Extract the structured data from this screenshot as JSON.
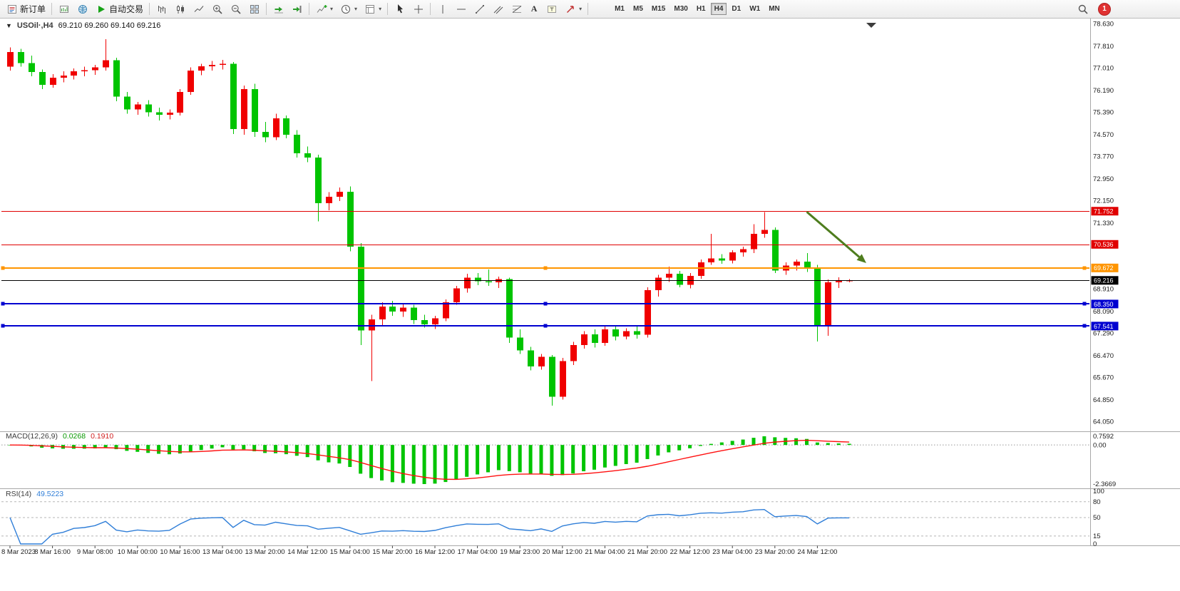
{
  "toolbar": {
    "new_order_label": "新订单",
    "auto_trading_label": "自动交易",
    "timeframes": [
      "M1",
      "M5",
      "M15",
      "M30",
      "H1",
      "H4",
      "D1",
      "W1",
      "MN"
    ],
    "active_timeframe": "H4",
    "notification_count": "1",
    "glyphs": {
      "one_click": "▼",
      "dropdown": "▾",
      "text_tool": "A"
    }
  },
  "chart_header": {
    "symbol_timeframe": "USOil·,H4",
    "ohlc": "69.210 69.260 69.140 69.216"
  },
  "indicators": {
    "macd": {
      "label": "MACD(12,26,9)",
      "value_main": "0.0268",
      "value_signal": "0.1910",
      "axis_labels": [
        "0.7592",
        "0.00",
        "-2.3669"
      ],
      "hist_color": "#00c400",
      "signal_color": "#ff1010"
    },
    "rsi": {
      "label": "RSI(14)",
      "value": "49.5223",
      "axis_labels": [
        "100",
        "80",
        "50",
        "15",
        "0"
      ],
      "levels": [
        80,
        50,
        15
      ],
      "line_color": "#2f7ed8"
    }
  },
  "chart_data": {
    "type": "candlestick",
    "symbol": "USOil",
    "timeframe": "H4",
    "colors": {
      "bull": "#f00000",
      "bear": "#00c400",
      "bid_line": "#000000"
    },
    "price_axis_labels": [
      "78.630",
      "77.810",
      "77.010",
      "76.190",
      "75.390",
      "74.570",
      "73.770",
      "72.950",
      "72.150",
      "71.330",
      "68.910",
      "68.090",
      "67.290",
      "66.470",
      "65.670",
      "64.850",
      "64.050"
    ],
    "x_tick_labels": [
      "8 Mar 2023",
      "8 Mar 16:00",
      "9 Mar 08:00",
      "10 Mar 00:00",
      "10 Mar 16:00",
      "13 Mar 04:00",
      "13 Mar 20:00",
      "14 Mar 12:00",
      "15 Mar 04:00",
      "15 Mar 20:00",
      "16 Mar 12:00",
      "17 Mar 04:00",
      "19 Mar 23:00",
      "20 Mar 12:00",
      "21 Mar 04:00",
      "21 Mar 20:00",
      "22 Mar 12:00",
      "23 Mar 04:00",
      "23 Mar 20:00",
      "24 Mar 12:00"
    ],
    "tick_every": 4,
    "candles": [
      [
        77.05,
        77.75,
        76.9,
        77.58
      ],
      [
        77.58,
        77.7,
        77.05,
        77.18
      ],
      [
        77.18,
        77.45,
        76.7,
        76.85
      ],
      [
        76.85,
        76.95,
        76.22,
        76.38
      ],
      [
        76.38,
        76.78,
        76.28,
        76.65
      ],
      [
        76.65,
        76.88,
        76.48,
        76.72
      ],
      [
        76.72,
        76.98,
        76.58,
        76.88
      ],
      [
        76.88,
        77.05,
        76.7,
        76.92
      ],
      [
        76.92,
        77.12,
        76.75,
        77.02
      ],
      [
        77.02,
        78.05,
        76.9,
        77.28
      ],
      [
        77.28,
        77.38,
        75.78,
        75.95
      ],
      [
        75.95,
        76.12,
        75.32,
        75.48
      ],
      [
        75.48,
        75.76,
        75.28,
        75.66
      ],
      [
        75.66,
        75.82,
        75.22,
        75.38
      ],
      [
        75.38,
        75.55,
        75.08,
        75.28
      ],
      [
        75.28,
        75.48,
        75.12,
        75.36
      ],
      [
        75.36,
        76.22,
        75.26,
        76.12
      ],
      [
        76.12,
        77.02,
        76.02,
        76.9
      ],
      [
        76.9,
        77.16,
        76.74,
        77.06
      ],
      [
        77.06,
        77.26,
        76.9,
        77.12
      ],
      [
        77.12,
        77.3,
        76.95,
        77.16
      ],
      [
        77.16,
        77.22,
        74.58,
        74.76
      ],
      [
        74.76,
        76.36,
        74.55,
        76.22
      ],
      [
        76.22,
        76.42,
        74.48,
        74.66
      ],
      [
        74.66,
        75.02,
        74.28,
        74.46
      ],
      [
        74.46,
        75.32,
        74.36,
        75.16
      ],
      [
        75.16,
        75.26,
        74.42,
        74.56
      ],
      [
        74.56,
        74.72,
        73.72,
        73.88
      ],
      [
        73.88,
        74.12,
        73.55,
        73.72
      ],
      [
        73.72,
        73.82,
        71.38,
        72.05
      ],
      [
        72.05,
        72.45,
        71.78,
        72.28
      ],
      [
        72.28,
        72.62,
        72.12,
        72.46
      ],
      [
        72.46,
        72.66,
        70.28,
        70.45
      ],
      [
        70.45,
        70.58,
        66.85,
        67.38
      ],
      [
        67.38,
        67.95,
        65.52,
        67.78
      ],
      [
        67.78,
        68.42,
        67.58,
        68.26
      ],
      [
        68.26,
        68.46,
        67.92,
        68.08
      ],
      [
        68.08,
        68.36,
        67.88,
        68.22
      ],
      [
        68.22,
        68.32,
        67.62,
        67.76
      ],
      [
        67.76,
        67.96,
        67.48,
        67.6
      ],
      [
        67.6,
        67.92,
        67.44,
        67.82
      ],
      [
        67.82,
        68.52,
        67.72,
        68.42
      ],
      [
        68.42,
        69.02,
        68.32,
        68.92
      ],
      [
        68.92,
        69.46,
        68.76,
        69.32
      ],
      [
        69.32,
        69.48,
        69.04,
        69.18
      ],
      [
        69.18,
        69.62,
        69.02,
        69.14
      ],
      [
        69.14,
        69.36,
        68.94,
        69.26
      ],
      [
        69.26,
        69.32,
        66.92,
        67.12
      ],
      [
        67.12,
        67.42,
        66.52,
        66.65
      ],
      [
        66.65,
        66.78,
        65.92,
        66.06
      ],
      [
        66.06,
        66.52,
        65.95,
        66.42
      ],
      [
        66.42,
        66.48,
        64.62,
        64.95
      ],
      [
        64.95,
        66.38,
        64.85,
        66.26
      ],
      [
        66.26,
        66.96,
        66.12,
        66.85
      ],
      [
        66.85,
        67.36,
        66.72,
        67.24
      ],
      [
        67.24,
        67.42,
        66.76,
        66.92
      ],
      [
        66.92,
        67.52,
        66.82,
        67.42
      ],
      [
        67.42,
        67.56,
        67.02,
        67.16
      ],
      [
        67.16,
        67.46,
        67.06,
        67.36
      ],
      [
        67.36,
        67.52,
        67.08,
        67.22
      ],
      [
        67.22,
        68.96,
        67.12,
        68.86
      ],
      [
        68.86,
        69.42,
        68.62,
        69.32
      ],
      [
        69.32,
        69.72,
        69.16,
        69.46
      ],
      [
        69.46,
        69.56,
        68.96,
        69.06
      ],
      [
        69.06,
        69.48,
        68.92,
        69.38
      ],
      [
        69.38,
        69.98,
        69.28,
        69.88
      ],
      [
        69.88,
        70.92,
        69.78,
        70.02
      ],
      [
        70.02,
        70.18,
        69.82,
        69.94
      ],
      [
        69.94,
        70.32,
        69.84,
        70.24
      ],
      [
        70.24,
        70.45,
        70.08,
        70.36
      ],
      [
        70.36,
        71.28,
        70.22,
        70.92
      ],
      [
        70.92,
        71.72,
        70.78,
        71.06
      ],
      [
        71.06,
        71.16,
        69.48,
        69.58
      ],
      [
        69.58,
        69.88,
        69.42,
        69.76
      ],
      [
        69.76,
        69.98,
        69.58,
        69.9
      ],
      [
        69.9,
        70.22,
        69.52,
        69.66
      ],
      [
        69.66,
        69.78,
        66.98,
        67.56
      ],
      [
        67.56,
        69.25,
        67.18,
        69.15
      ],
      [
        69.15,
        69.33,
        68.93,
        69.21
      ],
      [
        69.21,
        69.26,
        69.14,
        69.216
      ]
    ],
    "price_lines": [
      {
        "price": 71.752,
        "label": "71.752",
        "color": "#e00000",
        "width": 1,
        "handles": false
      },
      {
        "price": 70.536,
        "label": "70.536",
        "color": "#e00000",
        "width": 1,
        "handles": false
      },
      {
        "price": 69.672,
        "label": "69.672",
        "color": "#ff9500",
        "width": 2,
        "handles": true
      },
      {
        "price": 68.35,
        "label": "68.350",
        "color": "#0000d0",
        "width": 2,
        "handles": true
      },
      {
        "price": 67.541,
        "label": "67.541",
        "color": "#0000d0",
        "width": 2,
        "handles": true
      }
    ],
    "bid_line": {
      "price": 69.216,
      "label": "69.216",
      "color": "#000000"
    },
    "annotations": [
      {
        "type": "arrow",
        "from": {
          "index": 75.0,
          "price": 71.73
        },
        "to": {
          "index": 80.6,
          "price": 69.85
        },
        "color": "#4e7d1e",
        "width": 3
      }
    ]
  }
}
